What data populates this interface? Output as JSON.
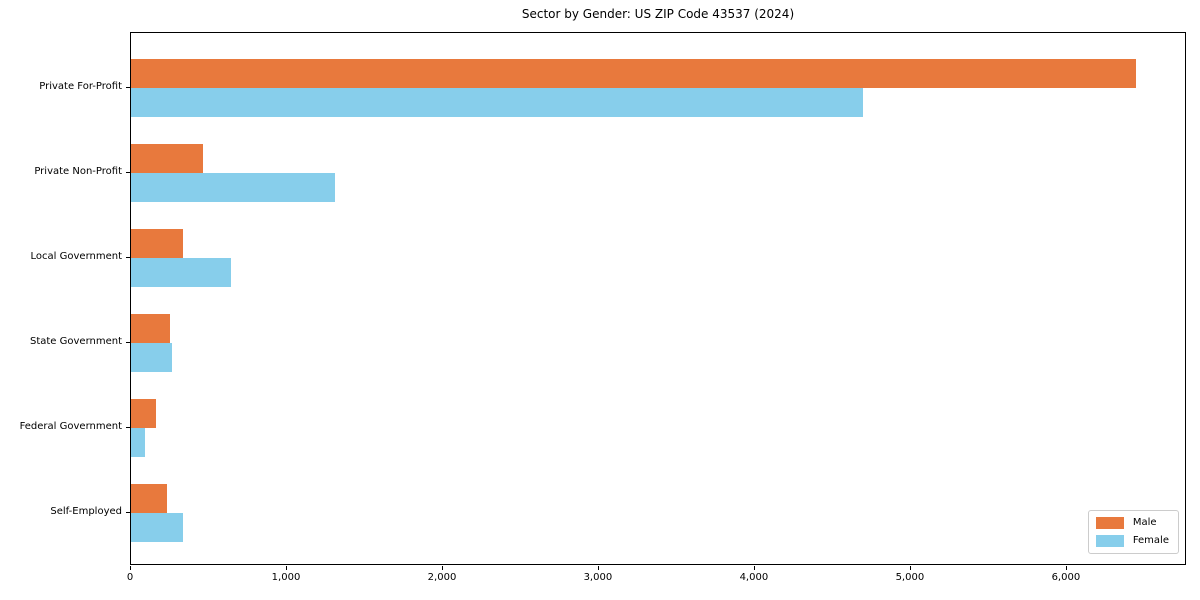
{
  "chart_data": {
    "type": "bar",
    "orientation": "horizontal",
    "title": "Sector by Gender: US ZIP Code 43537 (2024)",
    "categories": [
      "Private For-Profit",
      "Private Non-Profit",
      "Local Government",
      "State Government",
      "Federal Government",
      "Self-Employed"
    ],
    "series": [
      {
        "name": "Male",
        "color": "#e8793d",
        "values": [
          6440,
          460,
          335,
          250,
          160,
          230
        ]
      },
      {
        "name": "Female",
        "color": "#87ceeb",
        "values": [
          4690,
          1310,
          640,
          265,
          90,
          335
        ]
      }
    ],
    "xlim": [
      0,
      6770
    ],
    "x_ticks": [
      0,
      1000,
      2000,
      3000,
      4000,
      5000,
      6000
    ],
    "x_tick_labels": [
      "0",
      "1,000",
      "2,000",
      "3,000",
      "4,000",
      "5,000",
      "6,000"
    ],
    "xlabel": "",
    "ylabel": "",
    "grid": false,
    "legend_position": "lower right",
    "legend_labels": [
      "Male",
      "Female"
    ]
  },
  "colors": {
    "male": "#e8793d",
    "female": "#87ceeb",
    "axis": "#000000",
    "legend_border": "#cccccc",
    "background": "#ffffff"
  }
}
